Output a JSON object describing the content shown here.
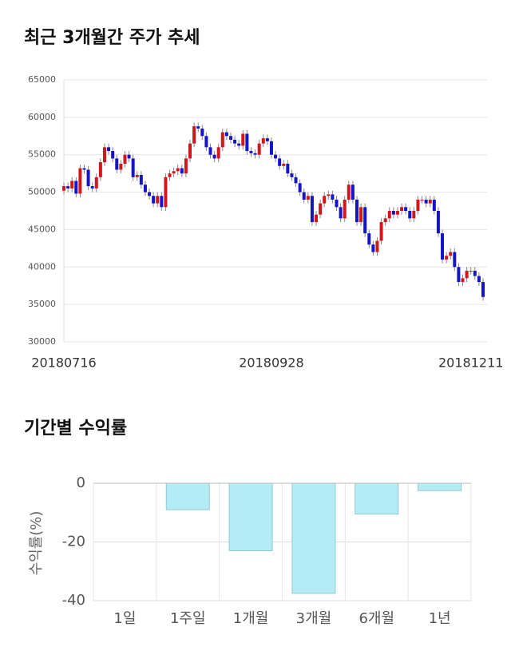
{
  "chart_data": [
    {
      "type": "candlestick",
      "title": "최근 3개월간 주가 추세",
      "categories": [
        "20180716",
        null,
        null,
        null,
        null,
        null,
        null,
        null,
        null,
        null,
        null,
        null,
        null,
        null,
        null,
        null,
        null,
        null,
        null,
        null,
        null,
        null,
        null,
        null,
        null,
        null,
        null,
        null,
        null,
        null,
        null,
        null,
        null,
        null,
        null,
        null,
        null,
        null,
        null,
        null,
        null,
        null,
        null,
        null,
        null,
        null,
        null,
        null,
        null,
        null,
        null,
        "20180928",
        null,
        null,
        null,
        null,
        null,
        null,
        null,
        null,
        null,
        null,
        null,
        null,
        null,
        null,
        null,
        null,
        null,
        null,
        null,
        null,
        null,
        null,
        null,
        null,
        null,
        null,
        null,
        null,
        null,
        null,
        null,
        null,
        null,
        null,
        null,
        null,
        null,
        null,
        null,
        null,
        null,
        null,
        null,
        null,
        null,
        null,
        null,
        null,
        "20181211",
        null,
        null,
        null
      ],
      "open": [
        50200,
        50800,
        50500,
        51500,
        49800,
        53200,
        53000,
        50800,
        50500,
        52000,
        54000,
        56000,
        55500,
        54500,
        53000,
        53800,
        55000,
        54500,
        52000,
        52300,
        51000,
        50000,
        49500,
        48500,
        49500,
        48000,
        52000,
        52500,
        52800,
        53200,
        52500,
        54500,
        56500,
        58800,
        58500,
        57500,
        56000,
        55000,
        54500,
        56000,
        58000,
        57500,
        57000,
        56500,
        56200,
        57800,
        55500,
        55200,
        55000,
        56500,
        57200,
        56800,
        55000,
        54500,
        53500,
        53800,
        52500,
        52000,
        51200,
        50000,
        49000,
        49500,
        46000,
        47000,
        48500,
        49500,
        49700,
        49000,
        48000,
        46500,
        49000,
        51000,
        49000,
        46000,
        48000,
        44500,
        43000,
        42000,
        43500,
        46000,
        46500,
        47500,
        47000,
        47500,
        48000,
        47500,
        46500,
        47500,
        49000,
        49000,
        48500,
        49000,
        47500,
        44500,
        41000,
        41500,
        42000,
        40000,
        38000,
        38500,
        39500,
        39500,
        38800,
        38000
      ],
      "high": [
        51300,
        51300,
        52000,
        52000,
        53700,
        53700,
        53500,
        51300,
        52500,
        54500,
        56500,
        56500,
        56000,
        55000,
        54300,
        55500,
        55500,
        55000,
        52800,
        52800,
        51500,
        50500,
        50000,
        50000,
        50000,
        52500,
        53000,
        53300,
        53700,
        53700,
        55000,
        57000,
        59300,
        59300,
        59000,
        58000,
        56500,
        55500,
        56500,
        58500,
        58500,
        58000,
        57500,
        57000,
        58300,
        58300,
        56000,
        55700,
        57000,
        57700,
        57700,
        57300,
        55500,
        55000,
        54300,
        54300,
        53000,
        52500,
        51700,
        50500,
        50000,
        50000,
        47500,
        49000,
        50000,
        50200,
        50200,
        49500,
        48500,
        49500,
        51500,
        51500,
        49500,
        48500,
        48500,
        45000,
        43500,
        44000,
        46500,
        47000,
        48000,
        48000,
        48000,
        48500,
        48500,
        48000,
        48000,
        49500,
        49500,
        49500,
        49500,
        49500,
        48000,
        45000,
        42000,
        42500,
        42500,
        40500,
        39000,
        40000,
        40000,
        40000,
        39300,
        38500
      ],
      "low": [
        49700,
        50000,
        50000,
        49300,
        49300,
        52500,
        50300,
        50000,
        50000,
        51500,
        53500,
        55000,
        54000,
        52500,
        52500,
        53300,
        54000,
        51500,
        51500,
        50500,
        49500,
        49000,
        48000,
        48000,
        47500,
        47500,
        51500,
        52000,
        52300,
        52000,
        52000,
        54000,
        56000,
        58000,
        57000,
        55500,
        54500,
        54000,
        54000,
        55500,
        57000,
        56500,
        56000,
        55700,
        55700,
        55000,
        54700,
        54500,
        54500,
        56000,
        56300,
        54500,
        54000,
        53000,
        53000,
        52000,
        51500,
        50700,
        49500,
        48500,
        48500,
        45500,
        45500,
        46500,
        48000,
        49000,
        48500,
        47500,
        46000,
        46000,
        48500,
        48500,
        45500,
        45500,
        44000,
        42500,
        41500,
        41500,
        43000,
        45500,
        46000,
        46500,
        46500,
        47000,
        47000,
        46000,
        46000,
        47000,
        48500,
        48000,
        48000,
        47000,
        44000,
        40500,
        40500,
        41000,
        39500,
        37500,
        37500,
        38000,
        39000,
        38300,
        37500,
        35500
      ],
      "close": [
        50800,
        50500,
        51500,
        49800,
        53200,
        53000,
        50800,
        50500,
        52000,
        54000,
        56000,
        55500,
        54500,
        53000,
        53800,
        55000,
        54500,
        52000,
        52300,
        51000,
        50000,
        49500,
        48500,
        49500,
        48000,
        52000,
        52500,
        52800,
        53200,
        52500,
        54500,
        56500,
        58800,
        58500,
        57500,
        56000,
        55000,
        54500,
        56000,
        58000,
        57500,
        57000,
        56500,
        56200,
        57800,
        55500,
        55200,
        55000,
        56500,
        57200,
        56800,
        55000,
        54500,
        53500,
        53800,
        52500,
        52000,
        51200,
        50000,
        49000,
        49500,
        46000,
        47000,
        48500,
        49500,
        49700,
        49000,
        48000,
        46500,
        49000,
        51000,
        49000,
        46000,
        48000,
        44500,
        43000,
        42000,
        43500,
        46000,
        46500,
        47500,
        47000,
        47500,
        48000,
        47500,
        46500,
        47500,
        49000,
        49000,
        48500,
        49000,
        47500,
        44500,
        41000,
        41500,
        42000,
        40000,
        38000,
        38500,
        39500,
        39500,
        38800,
        38000,
        36000
      ],
      "up_color": "#d0181b",
      "down_color": "#1414c8",
      "ylim": [
        30000,
        65000
      ],
      "yticks": [
        30000,
        35000,
        40000,
        45000,
        50000,
        55000,
        60000,
        65000
      ],
      "grid": true
    },
    {
      "type": "bar",
      "title": "기간별 수익률",
      "ylabel": "수익률(%)",
      "categories": [
        "1일",
        "1주일",
        "1개월",
        "3개월",
        "6개월",
        "1년"
      ],
      "values": [
        0,
        -9,
        -23,
        -37.5,
        -10.5,
        -2.5
      ],
      "color": "#b3ecf4",
      "ylim": [
        -40,
        0
      ],
      "yticks": [
        -40,
        -20,
        0
      ],
      "grid": true
    }
  ]
}
